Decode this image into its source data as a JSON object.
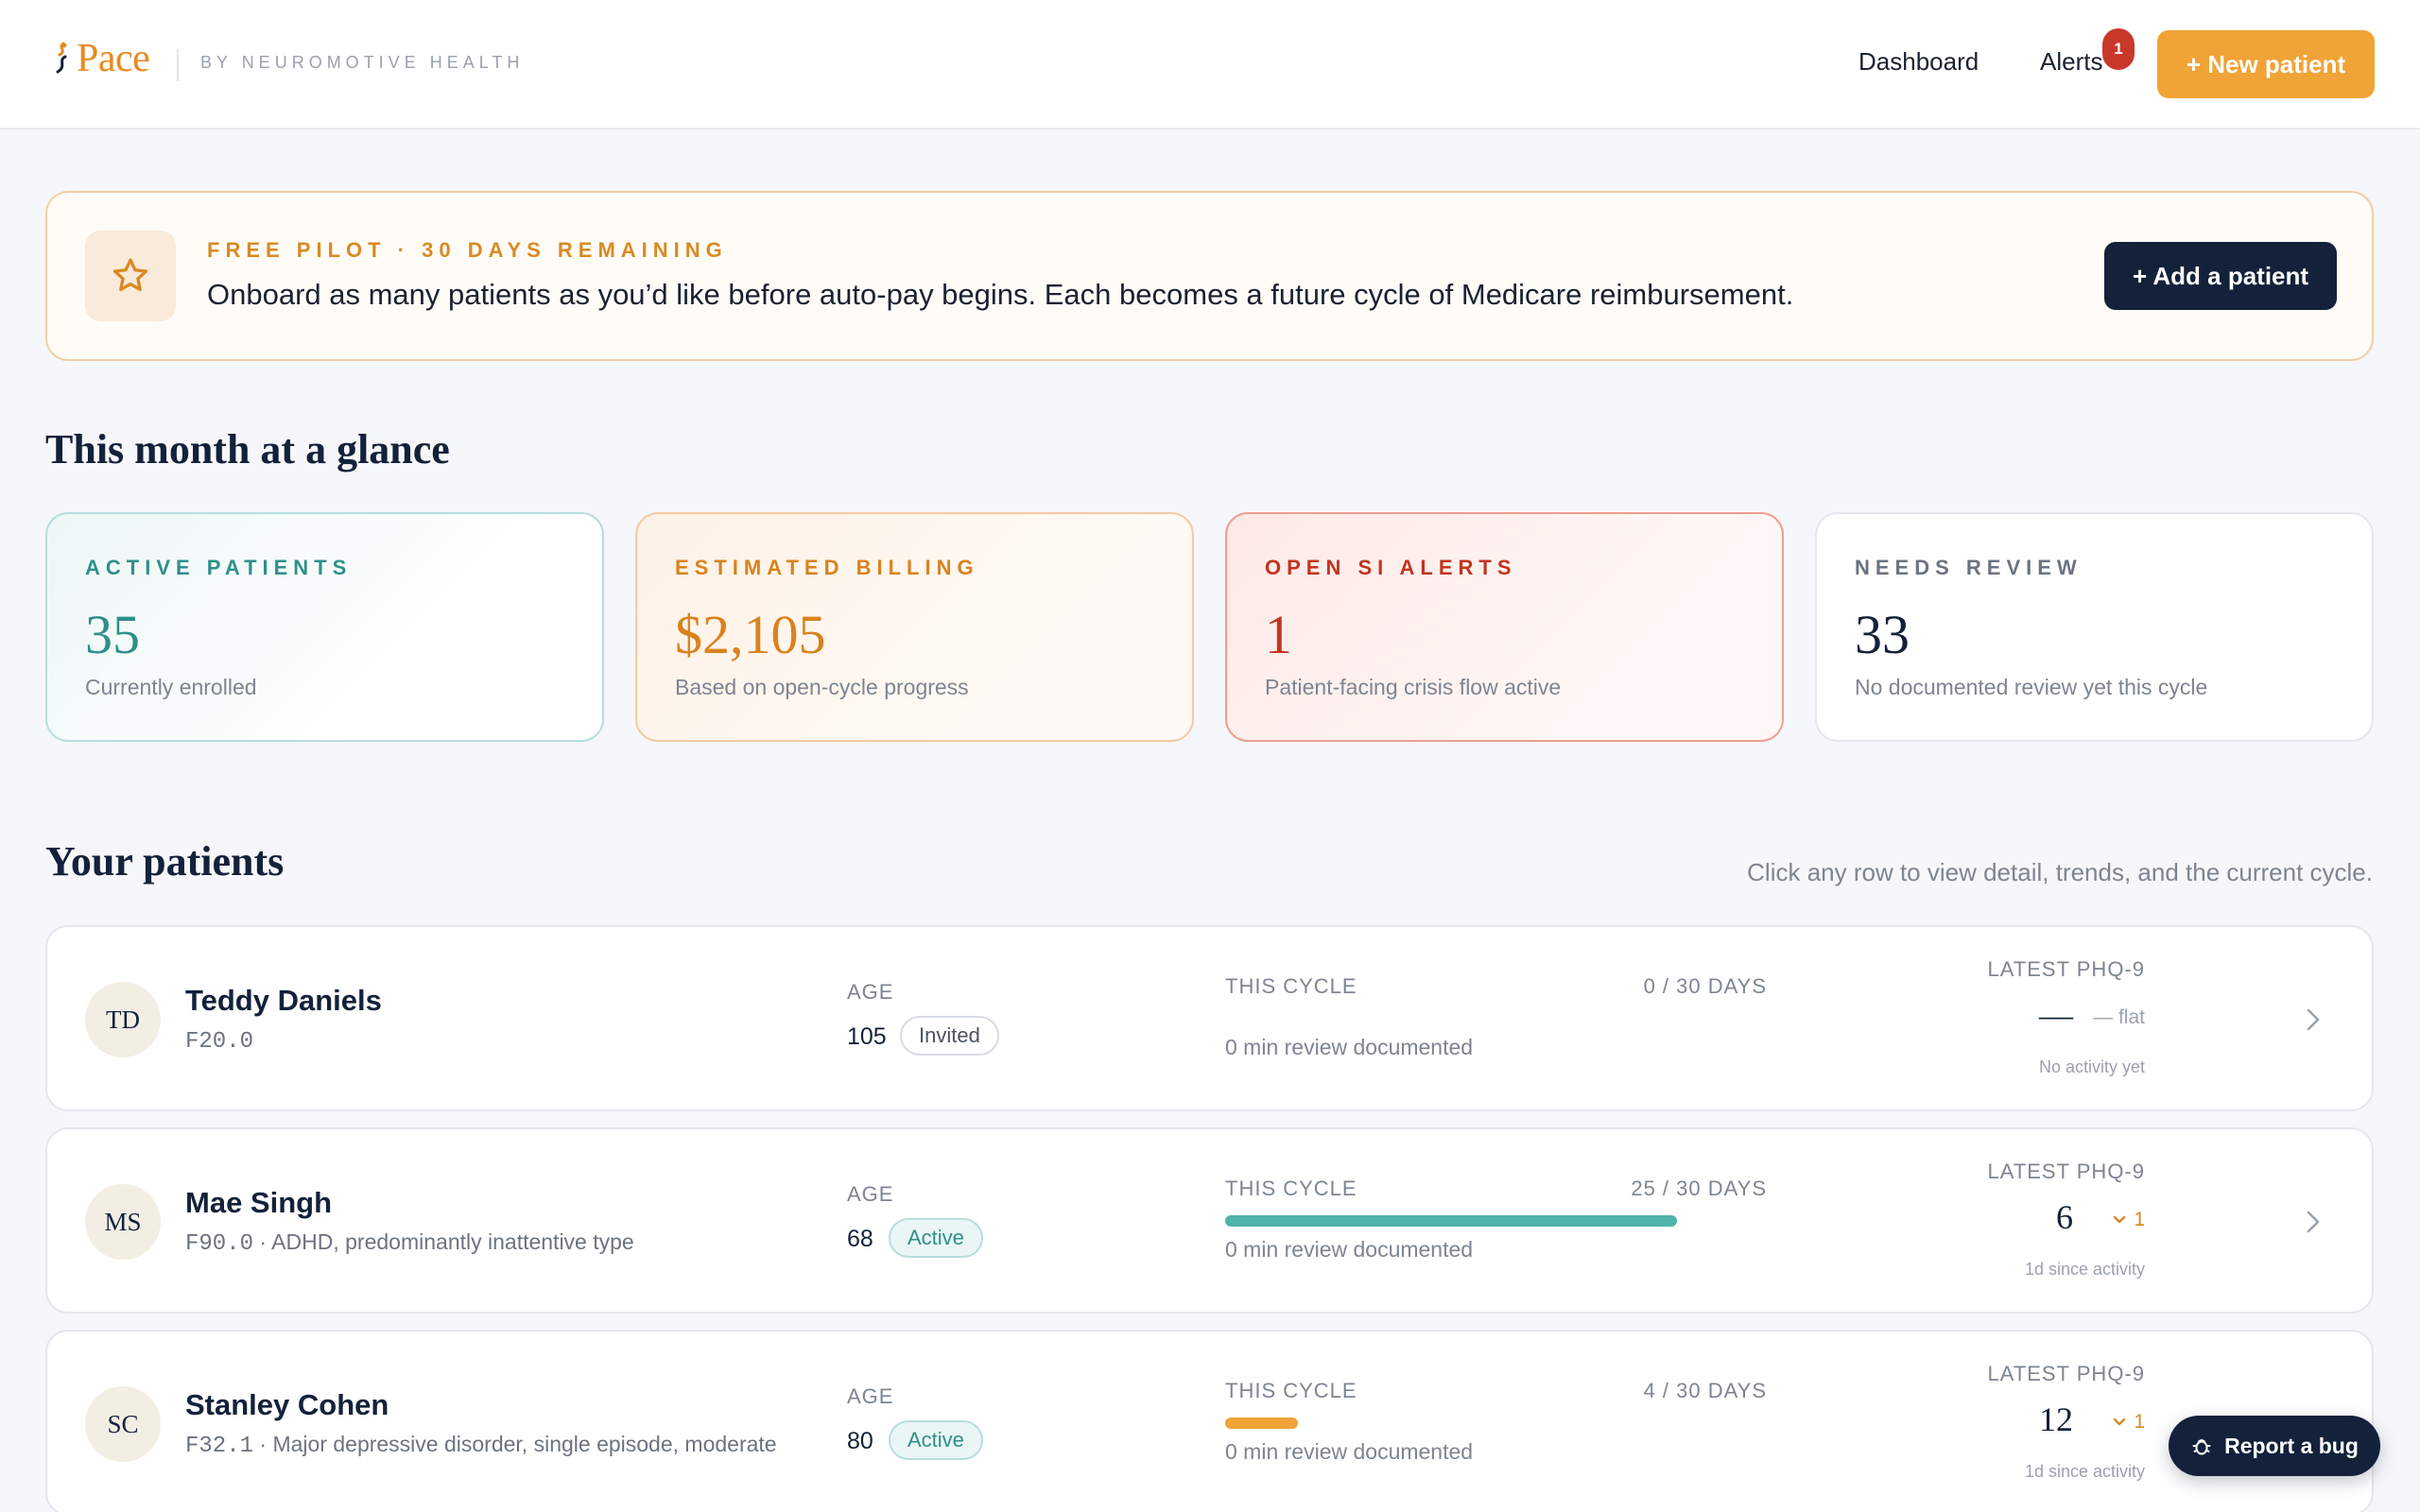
{
  "header": {
    "logo_text": "Pace",
    "byline": "BY NEUROMOTIVE HEALTH",
    "nav_dashboard": "Dashboard",
    "nav_alerts": "Alerts",
    "alerts_count": "1",
    "new_patient_label": "+ New patient"
  },
  "banner": {
    "kicker": "FREE PILOT · 30 DAYS REMAINING",
    "text": "Onboard as many patients as you’d like before auto-pay begins. Each becomes a future cycle of Medicare reimbursement.",
    "add_patient_label": "+ Add a patient",
    "icon": "star-icon"
  },
  "glance": {
    "title": "This month at a glance",
    "cards": [
      {
        "label": "ACTIVE PATIENTS",
        "value": "35",
        "sub": "Currently enrolled",
        "color": "#2f8f8a"
      },
      {
        "label": "ESTIMATED BILLING",
        "value": "$2,105",
        "sub": "Based on open-cycle progress",
        "color": "#d9821c"
      },
      {
        "label": "OPEN SI ALERTS",
        "value": "1",
        "sub": "Patient-facing crisis flow active",
        "color": "#c2341f"
      },
      {
        "label": "NEEDS REVIEW",
        "value": "33",
        "sub": "No documented review yet this cycle",
        "color": "#13213a"
      }
    ]
  },
  "patients": {
    "title": "Your patients",
    "hint": "Click any row to view detail, trends, and the current cycle.",
    "columns": {
      "age": "AGE",
      "cycle": "THIS CYCLE",
      "phq": "LATEST PHQ-9"
    },
    "rows": [
      {
        "initials": "TD",
        "name": "Teddy Daniels",
        "code": "F20.0",
        "diagnosis": "",
        "age": "105",
        "status": "Invited",
        "days": "0 / 30 DAYS",
        "progress": 0,
        "progress_color": "#4fb3aa",
        "review": "0 min review documented",
        "phq_score": "—",
        "phq_trend": "— flat",
        "phq_since": "No activity yet"
      },
      {
        "initials": "MS",
        "name": "Mae Singh",
        "code": "F90.0",
        "diagnosis": " · ADHD, predominantly inattentive type",
        "age": "68",
        "status": "Active",
        "days": "25 / 30 DAYS",
        "progress": 0.8333,
        "progress_color": "#4fb3aa",
        "review": "0 min review documented",
        "phq_score": "6",
        "phq_trend": "1",
        "phq_since": "1d since activity"
      },
      {
        "initials": "SC",
        "name": "Stanley Cohen",
        "code": "F32.1",
        "diagnosis": " · Major depressive disorder, single episode, moderate",
        "age": "80",
        "status": "Active",
        "days": "4 / 30 DAYS",
        "progress": 0.1333,
        "progress_color": "#f0a336",
        "review": "0 min review documented",
        "phq_score": "12",
        "phq_trend": "1",
        "phq_since": "1d since activity"
      }
    ]
  },
  "bug_report_label": "Report a bug"
}
